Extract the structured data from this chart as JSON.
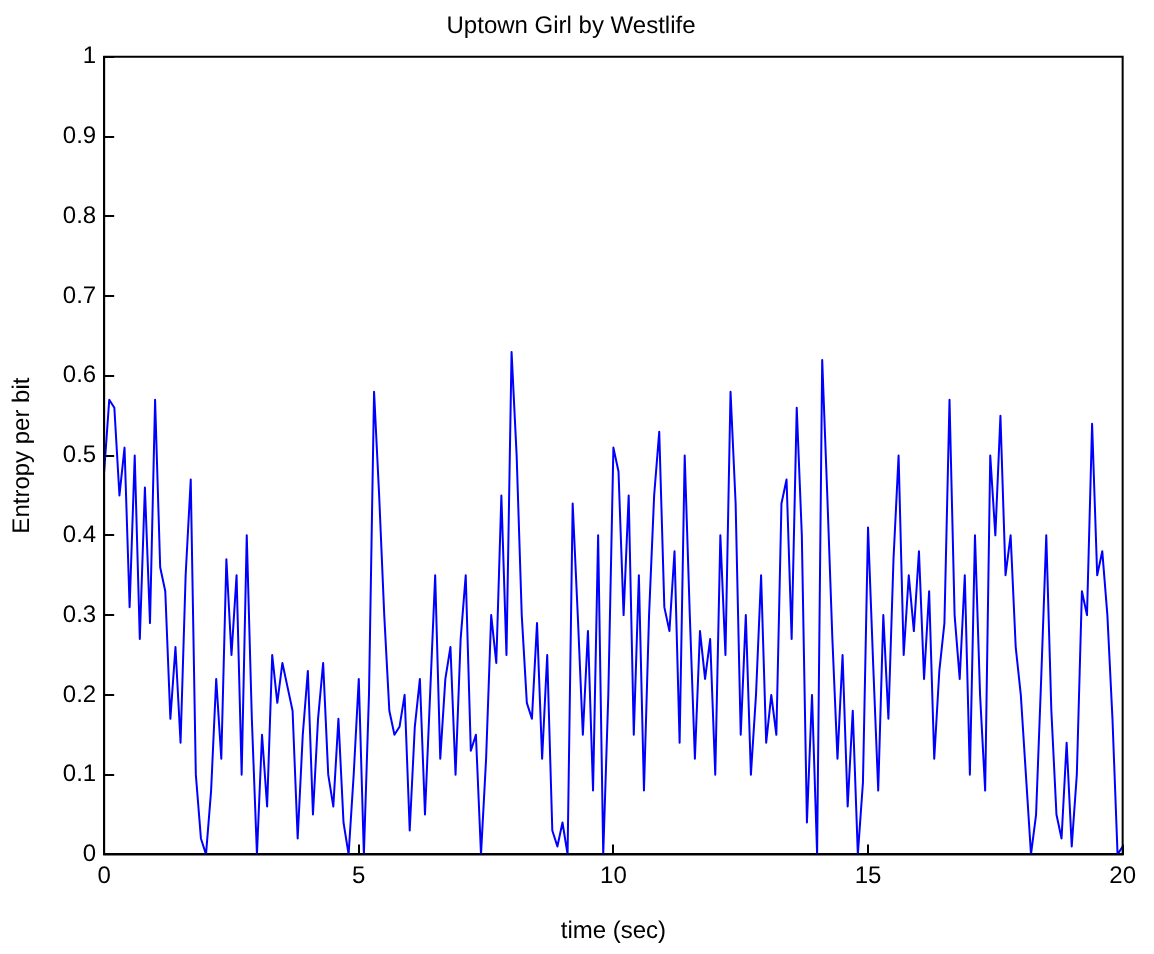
{
  "chart_data": {
    "type": "line",
    "title": "Uptown Girl by Westlife",
    "xlabel": "time (sec)",
    "ylabel": "Entropy per bit",
    "x": [
      0,
      0.1,
      0.2,
      0.3,
      0.4,
      0.5,
      0.6,
      0.7,
      0.8,
      0.9,
      1.0,
      1.1,
      1.2,
      1.3,
      1.4,
      1.5,
      1.6,
      1.7,
      1.8,
      1.9,
      2.0,
      2.1,
      2.2,
      2.3,
      2.4,
      2.5,
      2.6,
      2.7,
      2.8,
      2.9,
      3.0,
      3.1,
      3.2,
      3.3,
      3.4,
      3.5,
      3.6,
      3.7,
      3.8,
      3.9,
      4.0,
      4.1,
      4.2,
      4.3,
      4.4,
      4.5,
      4.6,
      4.7,
      4.8,
      4.9,
      5.0,
      5.1,
      5.2,
      5.3,
      5.4,
      5.5,
      5.6,
      5.7,
      5.8,
      5.9,
      6.0,
      6.1,
      6.2,
      6.3,
      6.4,
      6.5,
      6.6,
      6.7,
      6.8,
      6.9,
      7.0,
      7.1,
      7.2,
      7.3,
      7.4,
      7.5,
      7.6,
      7.7,
      7.8,
      7.9,
      8.0,
      8.1,
      8.2,
      8.3,
      8.4,
      8.5,
      8.6,
      8.7,
      8.8,
      8.9,
      9.0,
      9.1,
      9.2,
      9.3,
      9.4,
      9.5,
      9.6,
      9.7,
      9.8,
      9.9,
      10.0,
      10.1,
      10.2,
      10.3,
      10.4,
      10.5,
      10.6,
      10.7,
      10.8,
      10.9,
      11.0,
      11.1,
      11.2,
      11.3,
      11.4,
      11.5,
      11.6,
      11.7,
      11.8,
      11.9,
      12.0,
      12.1,
      12.2,
      12.3,
      12.4,
      12.5,
      12.6,
      12.7,
      12.8,
      12.9,
      13.0,
      13.1,
      13.2,
      13.3,
      13.4,
      13.5,
      13.6,
      13.7,
      13.8,
      13.9,
      14.0,
      14.1,
      14.2,
      14.3,
      14.4,
      14.5,
      14.6,
      14.7,
      14.8,
      14.9,
      15.0,
      15.1,
      15.2,
      15.3,
      15.4,
      15.5,
      15.6,
      15.7,
      15.8,
      15.9,
      16.0,
      16.1,
      16.2,
      16.3,
      16.4,
      16.5,
      16.6,
      16.7,
      16.8,
      16.9,
      17.0,
      17.1,
      17.2,
      17.3,
      17.4,
      17.5,
      17.6,
      17.7,
      17.8,
      17.9,
      18.0,
      18.1,
      18.2,
      18.3,
      18.4,
      18.5,
      18.6,
      18.7,
      18.8,
      18.9,
      19.0,
      19.1,
      19.2,
      19.3,
      19.4,
      19.5,
      19.6,
      19.7,
      19.8,
      19.9,
      20.0
    ],
    "values": [
      0.48,
      0.57,
      0.56,
      0.45,
      0.51,
      0.31,
      0.5,
      0.27,
      0.46,
      0.29,
      0.57,
      0.36,
      0.33,
      0.17,
      0.26,
      0.14,
      0.35,
      0.47,
      0.1,
      0.02,
      0.0,
      0.08,
      0.22,
      0.12,
      0.37,
      0.25,
      0.35,
      0.1,
      0.4,
      0.17,
      0.0,
      0.15,
      0.06,
      0.25,
      0.19,
      0.24,
      0.21,
      0.18,
      0.02,
      0.15,
      0.23,
      0.05,
      0.17,
      0.24,
      0.1,
      0.06,
      0.17,
      0.04,
      0.0,
      0.1,
      0.22,
      0.0,
      0.2,
      0.58,
      0.45,
      0.3,
      0.18,
      0.15,
      0.16,
      0.2,
      0.03,
      0.16,
      0.22,
      0.05,
      0.2,
      0.35,
      0.12,
      0.22,
      0.26,
      0.1,
      0.27,
      0.35,
      0.13,
      0.15,
      0.0,
      0.12,
      0.3,
      0.24,
      0.45,
      0.25,
      0.63,
      0.5,
      0.3,
      0.19,
      0.17,
      0.29,
      0.12,
      0.25,
      0.03,
      0.01,
      0.04,
      0.0,
      0.44,
      0.3,
      0.15,
      0.28,
      0.08,
      0.4,
      0.0,
      0.2,
      0.51,
      0.48,
      0.3,
      0.45,
      0.15,
      0.35,
      0.08,
      0.3,
      0.45,
      0.53,
      0.31,
      0.28,
      0.38,
      0.14,
      0.5,
      0.3,
      0.12,
      0.28,
      0.22,
      0.27,
      0.1,
      0.4,
      0.25,
      0.58,
      0.44,
      0.15,
      0.3,
      0.1,
      0.2,
      0.35,
      0.14,
      0.2,
      0.15,
      0.44,
      0.47,
      0.27,
      0.56,
      0.4,
      0.04,
      0.2,
      0.0,
      0.62,
      0.45,
      0.27,
      0.12,
      0.25,
      0.06,
      0.18,
      0.0,
      0.09,
      0.41,
      0.24,
      0.08,
      0.3,
      0.17,
      0.37,
      0.5,
      0.25,
      0.35,
      0.28,
      0.38,
      0.22,
      0.33,
      0.12,
      0.23,
      0.29,
      0.57,
      0.3,
      0.22,
      0.35,
      0.1,
      0.4,
      0.2,
      0.08,
      0.5,
      0.4,
      0.55,
      0.35,
      0.4,
      0.26,
      0.2,
      0.1,
      0.0,
      0.05,
      0.22,
      0.4,
      0.18,
      0.05,
      0.02,
      0.14,
      0.01,
      0.1,
      0.33,
      0.3,
      0.54,
      0.35,
      0.38,
      0.3,
      0.17,
      0.0,
      0.01
    ],
    "color": "#0000ff",
    "xlim": [
      0,
      20
    ],
    "xticks": [
      0,
      5,
      10,
      15,
      20
    ],
    "ylim": [
      0,
      1
    ],
    "yticks": [
      0,
      0.1,
      0.2,
      0.3,
      0.4,
      0.5,
      0.6,
      0.7,
      0.8,
      0.9,
      1
    ],
    "grid": false,
    "legend": false,
    "marker": "none",
    "line_style": "solid"
  }
}
